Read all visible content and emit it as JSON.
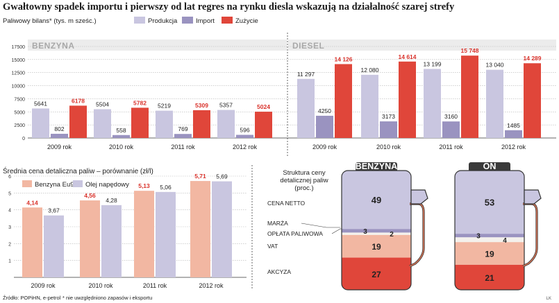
{
  "title": "Gwałtowny spadek importu i pierwszy od lat regres na rynku diesla wskazują na działalność szarej strefy",
  "colors": {
    "produkcja": "#c9c6e0",
    "import": "#9a93c0",
    "zuzycie": "#e0463a",
    "benzyna_bar": "#f2b7a2",
    "olej_bar": "#c9c6e0",
    "section_bg": "#ececec",
    "label_red": "#d9312a",
    "pump_top": "#c9c6e0",
    "pump_marza": "#9a93c0",
    "pump_vat": "#f2b7a2",
    "pump_akcyza": "#e0463a",
    "nozzle": "#d57456"
  },
  "chart_data": [
    {
      "type": "bar",
      "id": "bilans",
      "ylabel": "Paliwowy bilans* (tys. m sześc.)",
      "legend": [
        "Produkcja",
        "Import",
        "Zużycie"
      ],
      "legend_position": "top",
      "yticks": [
        "17500",
        "15000",
        "12500",
        "10000",
        "7500",
        "5000",
        "2500",
        "0"
      ],
      "ylim": [
        0,
        17500
      ],
      "grid": true,
      "groups": [
        {
          "name": "BENZYNA",
          "categories": [
            "2009 rok",
            "2010 rok",
            "2011 rok",
            "2012 rok"
          ],
          "series": [
            {
              "name": "Produkcja",
              "values": [
                5641,
                5504,
                5219,
                5357
              ],
              "labels": [
                "5641",
                "5504",
                "5219",
                "5357"
              ]
            },
            {
              "name": "Import",
              "values": [
                802,
                558,
                769,
                596
              ],
              "labels": [
                "802",
                "558",
                "769",
                "596"
              ]
            },
            {
              "name": "Zużycie",
              "values": [
                6178,
                5782,
                5309,
                5024
              ],
              "labels": [
                "6178",
                "5782",
                "5309",
                "5024"
              ]
            }
          ]
        },
        {
          "name": "DIESEL",
          "categories": [
            "2009 rok",
            "2010 rok",
            "2011 rok",
            "2012 rok"
          ],
          "series": [
            {
              "name": "Produkcja",
              "values": [
                11297,
                12080,
                13199,
                13040
              ],
              "labels": [
                "11 297",
                "12 080",
                "13 199",
                "13 040"
              ]
            },
            {
              "name": "Import",
              "values": [
                4250,
                3173,
                3160,
                1485
              ],
              "labels": [
                "4250",
                "3173",
                "3160",
                "1485"
              ]
            },
            {
              "name": "Zużycie",
              "values": [
                14126,
                14614,
                15748,
                14289
              ],
              "labels": [
                "14 126",
                "14 614",
                "15 748",
                "14 289"
              ]
            }
          ]
        }
      ]
    },
    {
      "type": "bar",
      "id": "ceny",
      "title": "Średnia cena detaliczna paliw – porównanie (zł/l)",
      "legend": [
        "Benzyna Eu95",
        "Olej napędowy"
      ],
      "legend_position": "top-left",
      "yticks": [
        "6",
        "5",
        "4",
        "3",
        "2",
        "1"
      ],
      "ylim": [
        0,
        6
      ],
      "grid": true,
      "categories": [
        "2009 rok",
        "2010 rok",
        "2011 rok",
        "2012 rok"
      ],
      "series": [
        {
          "name": "Benzyna Eu95",
          "values": [
            4.14,
            4.56,
            5.13,
            5.71
          ],
          "labels": [
            "4,14",
            "4,56",
            "5,13",
            "5,71"
          ]
        },
        {
          "name": "Olej napędowy",
          "values": [
            3.67,
            4.28,
            5.06,
            5.69
          ],
          "labels": [
            "3,67",
            "4,28",
            "5,06",
            "5,69"
          ]
        }
      ]
    },
    {
      "type": "bar",
      "id": "struktura",
      "title": "Struktura ceny detalicznej paliw (proc.)",
      "components": [
        "CENA NETTO",
        "MARŻA",
        "OPŁATA PALIWOWA",
        "VAT",
        "AKCYZA"
      ],
      "pumps": [
        {
          "name": "BENZYNA",
          "values": {
            "netto": 49,
            "marza": 3,
            "oplata": 2,
            "vat": 19,
            "akcyza": 27
          },
          "labels": {
            "netto": "49",
            "marza": "3",
            "oplata": "2",
            "vat": "19",
            "akcyza": "27"
          }
        },
        {
          "name": "ON",
          "values": {
            "netto": 53,
            "marza": 3,
            "oplata": 4,
            "vat": 19,
            "akcyza": 21
          },
          "labels": {
            "netto": "53",
            "marza": "3",
            "oplata": "4",
            "vat": "19",
            "akcyza": "21"
          }
        }
      ]
    }
  ],
  "footer": {
    "source": "Źródło: POPiHN, e-petrol",
    "note": "* nie uwzględniono zapasów i eksportu",
    "credit": "LK"
  }
}
